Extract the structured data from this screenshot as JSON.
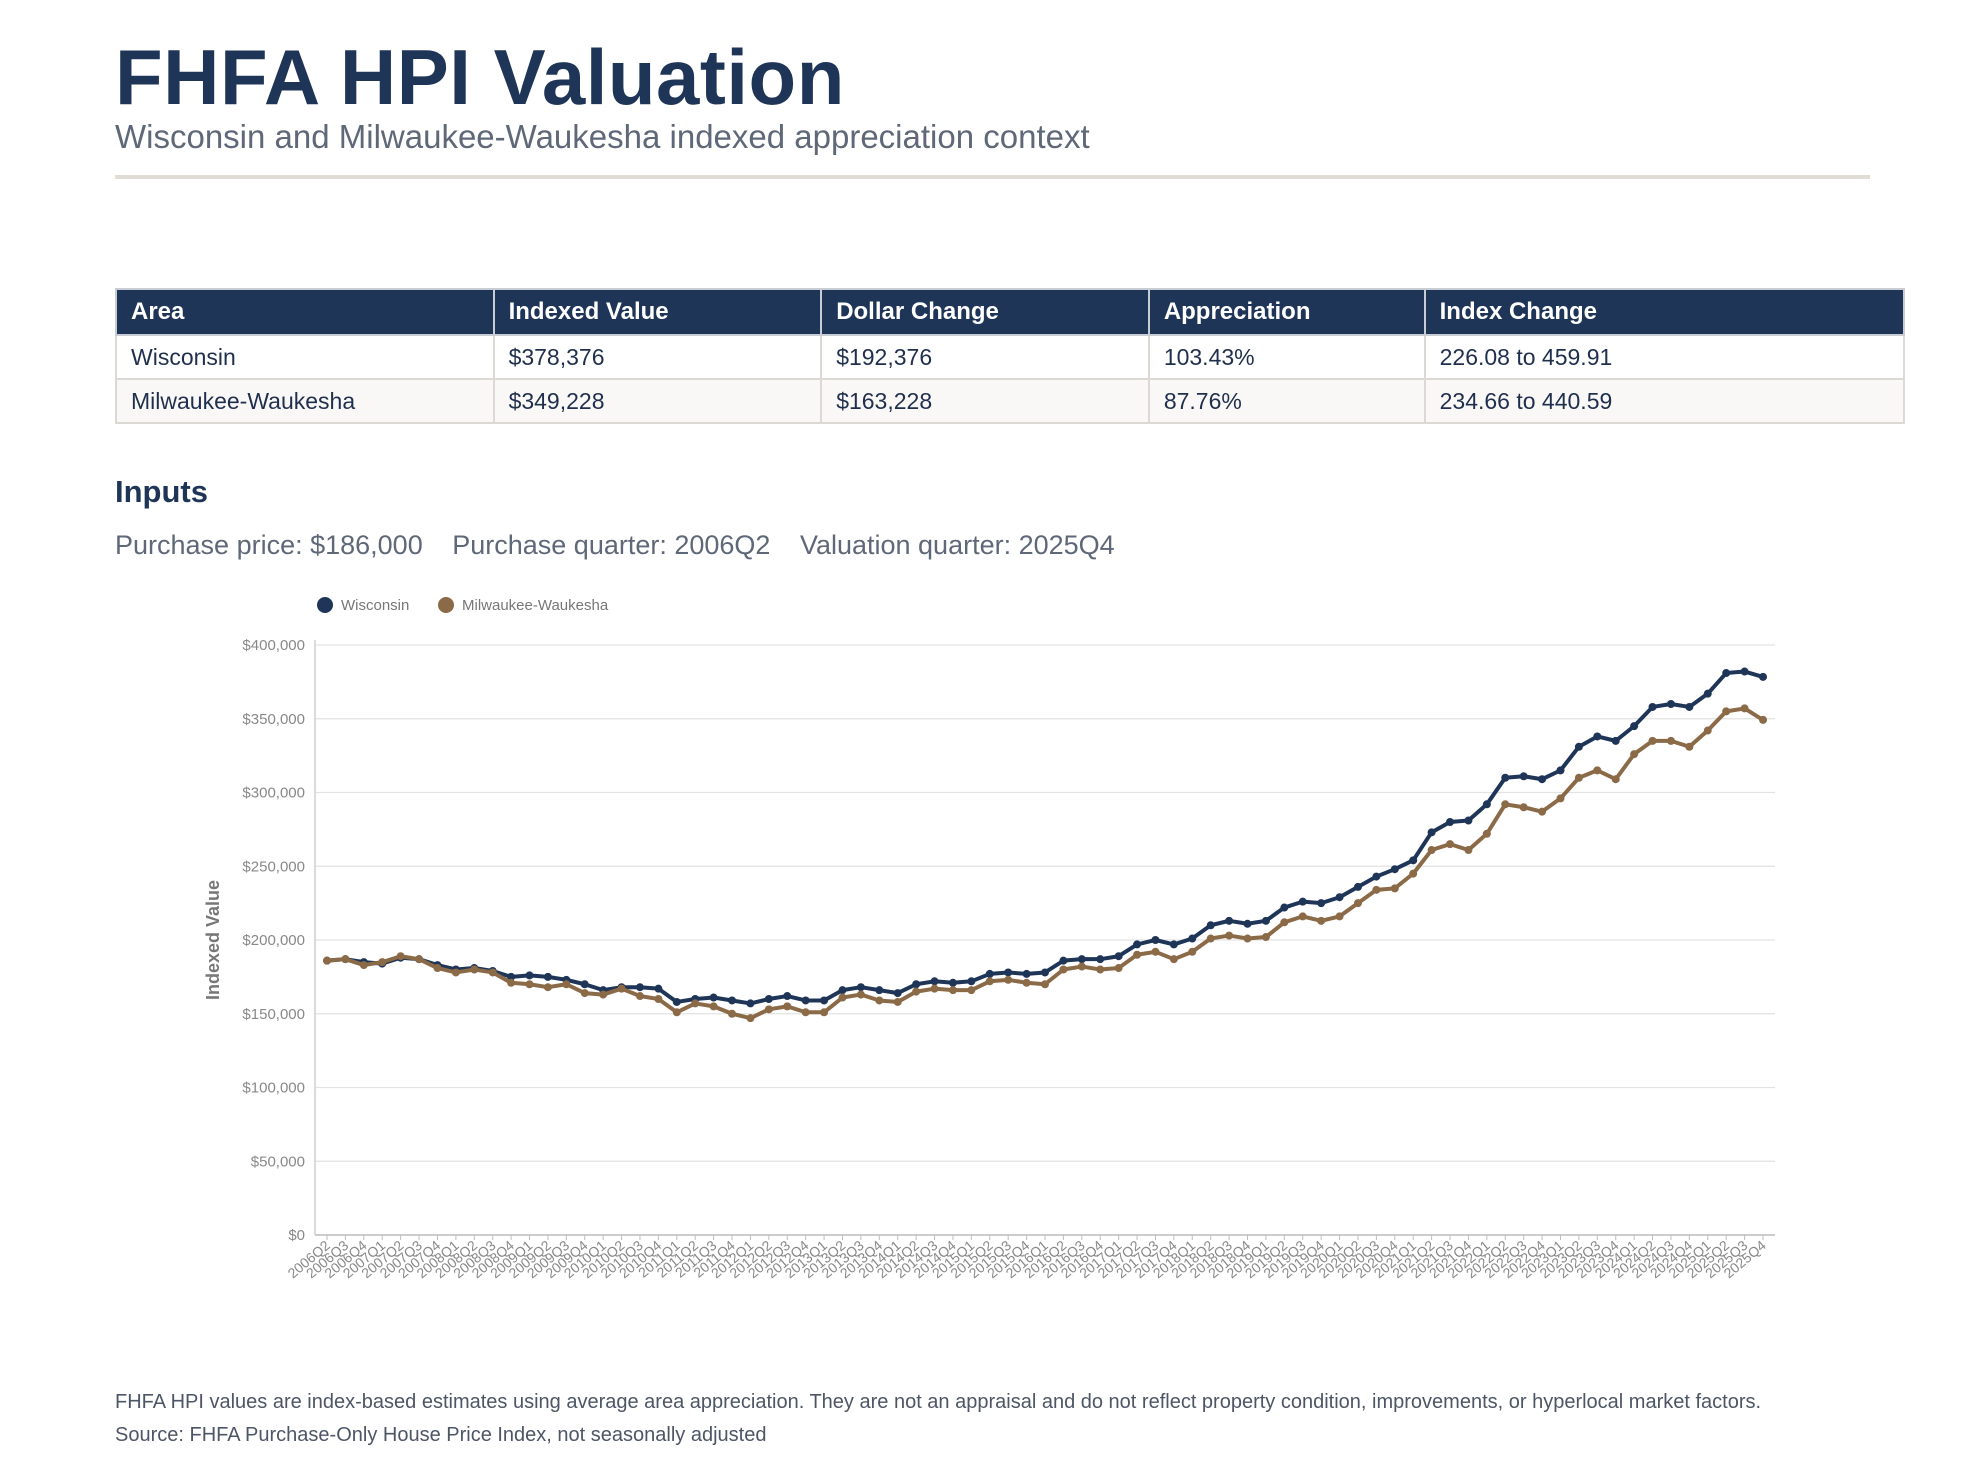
{
  "header": {
    "title": "FHFA HPI Valuation",
    "subtitle": "Wisconsin and Milwaukee-Waukesha indexed appreciation context"
  },
  "table": {
    "columns": [
      "Area",
      "Indexed Value",
      "Dollar Change",
      "Appreciation",
      "Index Change"
    ],
    "rows": [
      {
        "area": "Wisconsin",
        "indexed_value": "$378,376",
        "dollar_change": "$192,376",
        "appreciation": "103.43%",
        "index_change": "226.08 to 459.91"
      },
      {
        "area": "Milwaukee-Waukesha",
        "indexed_value": "$349,228",
        "dollar_change": "$163,228",
        "appreciation": "87.76%",
        "index_change": "234.66 to 440.59"
      }
    ]
  },
  "inputs": {
    "heading": "Inputs",
    "purchase_price": "Purchase price: $186,000",
    "purchase_quarter": "Purchase quarter: 2006Q2",
    "valuation_quarter": "Valuation quarter: 2025Q4"
  },
  "footer": {
    "note": "FHFA HPI values are index-based estimates using average area appreciation. They are not an appraisal and do not reflect property condition, improvements, or hyperlocal market factors.",
    "source": "Source: FHFA Purchase-Only House Price Index, not seasonally adjusted"
  },
  "colors": {
    "navy": "#1f3558",
    "brown": "#8b6a48",
    "grid": "#e3e3e3",
    "axis_text": "#888888"
  },
  "chart_data": {
    "type": "line",
    "ylabel": "Indexed Value",
    "xlabel": "",
    "ylim": [
      0,
      400000
    ],
    "yticks": [
      0,
      50000,
      100000,
      150000,
      200000,
      250000,
      300000,
      350000,
      400000
    ],
    "ytick_labels": [
      "$0",
      "$50,000",
      "$100,000",
      "$150,000",
      "$200,000",
      "$250,000",
      "$300,000",
      "$350,000",
      "$400,000"
    ],
    "legend_position": "top-left",
    "grid": true,
    "x": [
      "2006Q2",
      "2006Q3",
      "2006Q4",
      "2007Q1",
      "2007Q2",
      "2007Q3",
      "2007Q4",
      "2008Q1",
      "2008Q2",
      "2008Q3",
      "2008Q4",
      "2009Q1",
      "2009Q2",
      "2009Q3",
      "2009Q4",
      "2010Q1",
      "2010Q2",
      "2010Q3",
      "2010Q4",
      "2011Q1",
      "2011Q2",
      "2011Q3",
      "2011Q4",
      "2012Q1",
      "2012Q2",
      "2012Q3",
      "2012Q4",
      "2013Q1",
      "2013Q2",
      "2013Q3",
      "2013Q4",
      "2014Q1",
      "2014Q2",
      "2014Q3",
      "2014Q4",
      "2015Q1",
      "2015Q2",
      "2015Q3",
      "2015Q4",
      "2016Q1",
      "2016Q2",
      "2016Q3",
      "2016Q4",
      "2017Q1",
      "2017Q2",
      "2017Q3",
      "2017Q4",
      "2018Q1",
      "2018Q2",
      "2018Q3",
      "2018Q4",
      "2019Q1",
      "2019Q2",
      "2019Q3",
      "2019Q4",
      "2020Q1",
      "2020Q2",
      "2020Q3",
      "2020Q4",
      "2021Q1",
      "2021Q2",
      "2021Q3",
      "2021Q4",
      "2022Q1",
      "2022Q2",
      "2022Q3",
      "2022Q4",
      "2023Q1",
      "2023Q2",
      "2023Q3",
      "2023Q4",
      "2024Q1",
      "2024Q2",
      "2024Q3",
      "2024Q4",
      "2025Q1",
      "2025Q2",
      "2025Q3",
      "2025Q4"
    ],
    "series": [
      {
        "name": "Wisconsin",
        "color": "#1f3558",
        "values": [
          186000,
          187000,
          185000,
          184000,
          188000,
          187000,
          183000,
          180000,
          181000,
          179000,
          175000,
          176000,
          175000,
          173000,
          170000,
          166000,
          168000,
          168000,
          167000,
          158000,
          160000,
          161000,
          159000,
          157000,
          160000,
          162000,
          159000,
          159000,
          166000,
          168000,
          166000,
          164000,
          170000,
          172000,
          171000,
          172000,
          177000,
          178000,
          177000,
          178000,
          186000,
          187000,
          187000,
          189000,
          197000,
          200000,
          197000,
          201000,
          210000,
          213000,
          211000,
          213000,
          222000,
          226000,
          225000,
          229000,
          236000,
          243000,
          248000,
          254000,
          273000,
          280000,
          281000,
          292000,
          310000,
          311000,
          309000,
          315000,
          331000,
          338000,
          335000,
          345000,
          358000,
          360000,
          358000,
          367000,
          381000,
          382000,
          378376
        ]
      },
      {
        "name": "Milwaukee-Waukesha",
        "color": "#8b6a48",
        "values": [
          186000,
          187000,
          183000,
          185000,
          189000,
          187000,
          181000,
          178000,
          180000,
          178000,
          171000,
          170000,
          168000,
          170000,
          164000,
          163000,
          167000,
          162000,
          160000,
          151000,
          157000,
          155000,
          150000,
          147000,
          153000,
          155000,
          151000,
          151000,
          161000,
          163000,
          159000,
          158000,
          165000,
          167000,
          166000,
          166000,
          172000,
          173000,
          171000,
          170000,
          180000,
          182000,
          180000,
          181000,
          190000,
          192000,
          187000,
          192000,
          201000,
          203000,
          201000,
          202000,
          212000,
          216000,
          213000,
          216000,
          225000,
          234000,
          235000,
          245000,
          261000,
          265000,
          261000,
          272000,
          292000,
          290000,
          287000,
          296000,
          310000,
          315000,
          309000,
          326000,
          335000,
          335000,
          331000,
          342000,
          355000,
          357000,
          349228
        ]
      }
    ]
  }
}
